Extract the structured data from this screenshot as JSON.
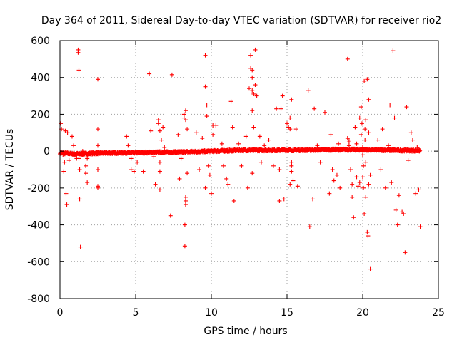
{
  "chart_data": {
    "type": "scatter",
    "title": "Day 364 of 2011, Sidereal Day-to-day VTEC variation (SDTVAR) for receiver rio2",
    "xlabel": "GPS time / hours",
    "ylabel": "SDTVAR / TECUs",
    "xlim": [
      0,
      25
    ],
    "ylim": [
      -800,
      600
    ],
    "xticks": [
      0,
      5,
      10,
      15,
      20,
      25
    ],
    "yticks": [
      -800,
      -600,
      -400,
      -200,
      0,
      200,
      400,
      600
    ],
    "xtick_labels": [
      "0",
      "5",
      "10",
      "15",
      "20",
      "25"
    ],
    "ytick_labels": [
      "-800",
      "-600",
      "-400",
      "-200",
      "0",
      "200",
      "400",
      "600"
    ],
    "grid": true,
    "marker": "+",
    "color": "#ff0000",
    "band": {
      "description": "dense band of points near zero across the day",
      "x_start": 0.0,
      "x_end": 23.8,
      "y_path": [
        [
          0,
          -10
        ],
        [
          1,
          -15
        ],
        [
          3,
          -10
        ],
        [
          5,
          -8
        ],
        [
          8,
          -5
        ],
        [
          10,
          0
        ],
        [
          12,
          5
        ],
        [
          15,
          5
        ],
        [
          18,
          8
        ],
        [
          20,
          8
        ],
        [
          22,
          5
        ],
        [
          23.8,
          3
        ]
      ],
      "spread": 10
    },
    "series": [
      {
        "name": "SDTVAR",
        "points": [
          [
            0.05,
            150
          ],
          [
            0.1,
            120
          ],
          [
            0.2,
            -20
          ],
          [
            0.3,
            -60
          ],
          [
            0.35,
            110
          ],
          [
            0.4,
            -230
          ],
          [
            0.45,
            -290
          ],
          [
            0.5,
            100
          ],
          [
            0.25,
            -110
          ],
          [
            0.6,
            -50
          ],
          [
            0.8,
            80
          ],
          [
            0.9,
            30
          ],
          [
            1.0,
            -20
          ],
          [
            1.1,
            -40
          ],
          [
            1.2,
            550
          ],
          [
            1.2,
            535
          ],
          [
            1.25,
            440
          ],
          [
            1.25,
            -40
          ],
          [
            1.3,
            -100
          ],
          [
            1.3,
            -260
          ],
          [
            1.35,
            -520
          ],
          [
            1.5,
            0
          ],
          [
            1.5,
            -20
          ],
          [
            1.7,
            -80
          ],
          [
            1.7,
            -120
          ],
          [
            1.8,
            -170
          ],
          [
            1.8,
            -40
          ],
          [
            2.5,
            390
          ],
          [
            2.5,
            120
          ],
          [
            2.5,
            30
          ],
          [
            2.5,
            -100
          ],
          [
            2.5,
            -190
          ],
          [
            2.5,
            -200
          ],
          [
            4.4,
            80
          ],
          [
            4.5,
            30
          ],
          [
            4.7,
            -40
          ],
          [
            4.7,
            -100
          ],
          [
            4.9,
            -110
          ],
          [
            5.1,
            -60
          ],
          [
            5.5,
            -110
          ],
          [
            5.9,
            420
          ],
          [
            6.0,
            110
          ],
          [
            6.2,
            -30
          ],
          [
            6.3,
            -180
          ],
          [
            6.5,
            150
          ],
          [
            6.5,
            170
          ],
          [
            6.6,
            110
          ],
          [
            6.7,
            60
          ],
          [
            6.8,
            130
          ],
          [
            6.9,
            20
          ],
          [
            6.6,
            -60
          ],
          [
            6.6,
            -110
          ],
          [
            6.6,
            -210
          ],
          [
            7.3,
            -350
          ],
          [
            7.4,
            415
          ],
          [
            7.8,
            90
          ],
          [
            7.9,
            -150
          ],
          [
            8.0,
            -40
          ],
          [
            8.2,
            200
          ],
          [
            8.2,
            180
          ],
          [
            8.3,
            220
          ],
          [
            8.3,
            170
          ],
          [
            8.3,
            -250
          ],
          [
            8.3,
            -270
          ],
          [
            8.3,
            -290
          ],
          [
            8.25,
            -400
          ],
          [
            8.25,
            -515
          ],
          [
            8.4,
            120
          ],
          [
            8.4,
            -120
          ],
          [
            9.0,
            100
          ],
          [
            9.2,
            -100
          ],
          [
            9.4,
            70
          ],
          [
            9.6,
            520
          ],
          [
            9.6,
            350
          ],
          [
            9.7,
            250
          ],
          [
            9.7,
            190
          ],
          [
            9.6,
            -200
          ],
          [
            9.8,
            -80
          ],
          [
            9.9,
            -130
          ],
          [
            10.0,
            -230
          ],
          [
            10.1,
            140
          ],
          [
            10.1,
            90
          ],
          [
            10.3,
            140
          ],
          [
            10.7,
            40
          ],
          [
            10.8,
            -80
          ],
          [
            11.0,
            -150
          ],
          [
            11.1,
            -180
          ],
          [
            11.3,
            270
          ],
          [
            11.4,
            130
          ],
          [
            11.5,
            -270
          ],
          [
            11.8,
            40
          ],
          [
            12.0,
            -80
          ],
          [
            12.3,
            80
          ],
          [
            12.4,
            -200
          ],
          [
            12.5,
            340
          ],
          [
            12.6,
            520
          ],
          [
            12.6,
            450
          ],
          [
            12.7,
            440
          ],
          [
            12.7,
            400
          ],
          [
            12.7,
            330
          ],
          [
            12.7,
            220
          ],
          [
            12.8,
            130
          ],
          [
            12.7,
            -120
          ],
          [
            12.8,
            310
          ],
          [
            12.9,
            550
          ],
          [
            12.9,
            360
          ],
          [
            13.0,
            300
          ],
          [
            13.2,
            80
          ],
          [
            13.3,
            -60
          ],
          [
            13.5,
            30
          ],
          [
            13.8,
            60
          ],
          [
            14.1,
            -80
          ],
          [
            14.3,
            230
          ],
          [
            14.5,
            -100
          ],
          [
            14.5,
            -270
          ],
          [
            14.6,
            230
          ],
          [
            14.7,
            300
          ],
          [
            14.8,
            -260
          ],
          [
            15.0,
            150
          ],
          [
            15.1,
            130
          ],
          [
            15.2,
            120
          ],
          [
            15.2,
            180
          ],
          [
            15.3,
            280
          ],
          [
            15.3,
            -60
          ],
          [
            15.3,
            -80
          ],
          [
            15.3,
            -110
          ],
          [
            15.4,
            -160
          ],
          [
            15.2,
            -180
          ],
          [
            15.6,
            120
          ],
          [
            15.7,
            -190
          ],
          [
            16.4,
            330
          ],
          [
            16.5,
            -410
          ],
          [
            16.7,
            -260
          ],
          [
            16.8,
            230
          ],
          [
            17.0,
            30
          ],
          [
            17.2,
            -60
          ],
          [
            17.5,
            210
          ],
          [
            17.8,
            -230
          ],
          [
            17.9,
            90
          ],
          [
            18.0,
            -100
          ],
          [
            18.1,
            -160
          ],
          [
            18.3,
            -130
          ],
          [
            18.4,
            40
          ],
          [
            18.5,
            -200
          ],
          [
            19.0,
            500
          ],
          [
            19.0,
            70
          ],
          [
            19.1,
            60
          ],
          [
            19.1,
            50
          ],
          [
            19.1,
            30
          ],
          [
            19.2,
            -100
          ],
          [
            19.3,
            -180
          ],
          [
            19.3,
            -250
          ],
          [
            19.4,
            -360
          ],
          [
            19.5,
            130
          ],
          [
            19.6,
            40
          ],
          [
            19.6,
            -140
          ],
          [
            19.7,
            -190
          ],
          [
            19.8,
            -170
          ],
          [
            19.9,
            90
          ],
          [
            19.9,
            240
          ],
          [
            19.95,
            150
          ],
          [
            20.0,
            20
          ],
          [
            20.0,
            -20
          ],
          [
            20.0,
            -140
          ],
          [
            20.05,
            -80
          ],
          [
            20.05,
            -200
          ],
          [
            20.1,
            -340
          ],
          [
            20.1,
            380
          ],
          [
            20.15,
            120
          ],
          [
            20.15,
            60
          ],
          [
            20.2,
            -60
          ],
          [
            20.2,
            -250
          ],
          [
            20.2,
            170
          ],
          [
            20.3,
            -440
          ],
          [
            20.35,
            -460
          ],
          [
            20.4,
            280
          ],
          [
            20.4,
            100
          ],
          [
            20.4,
            -180
          ],
          [
            20.5,
            -640
          ],
          [
            20.5,
            -130
          ],
          [
            20.3,
            390
          ],
          [
            19.8,
            180
          ],
          [
            21.0,
            60
          ],
          [
            21.2,
            -100
          ],
          [
            21.3,
            120
          ],
          [
            21.5,
            -200
          ],
          [
            21.7,
            30
          ],
          [
            21.8,
            250
          ],
          [
            21.9,
            -170
          ],
          [
            22.0,
            545
          ],
          [
            22.1,
            180
          ],
          [
            22.2,
            -320
          ],
          [
            22.3,
            -400
          ],
          [
            22.4,
            -240
          ],
          [
            22.6,
            -330
          ],
          [
            22.7,
            -340
          ],
          [
            22.8,
            -550
          ],
          [
            22.9,
            240
          ],
          [
            23.0,
            -50
          ],
          [
            23.2,
            100
          ],
          [
            23.3,
            60
          ],
          [
            23.5,
            -230
          ],
          [
            23.6,
            20
          ],
          [
            23.7,
            -210
          ],
          [
            23.8,
            -410
          ]
        ]
      }
    ]
  }
}
